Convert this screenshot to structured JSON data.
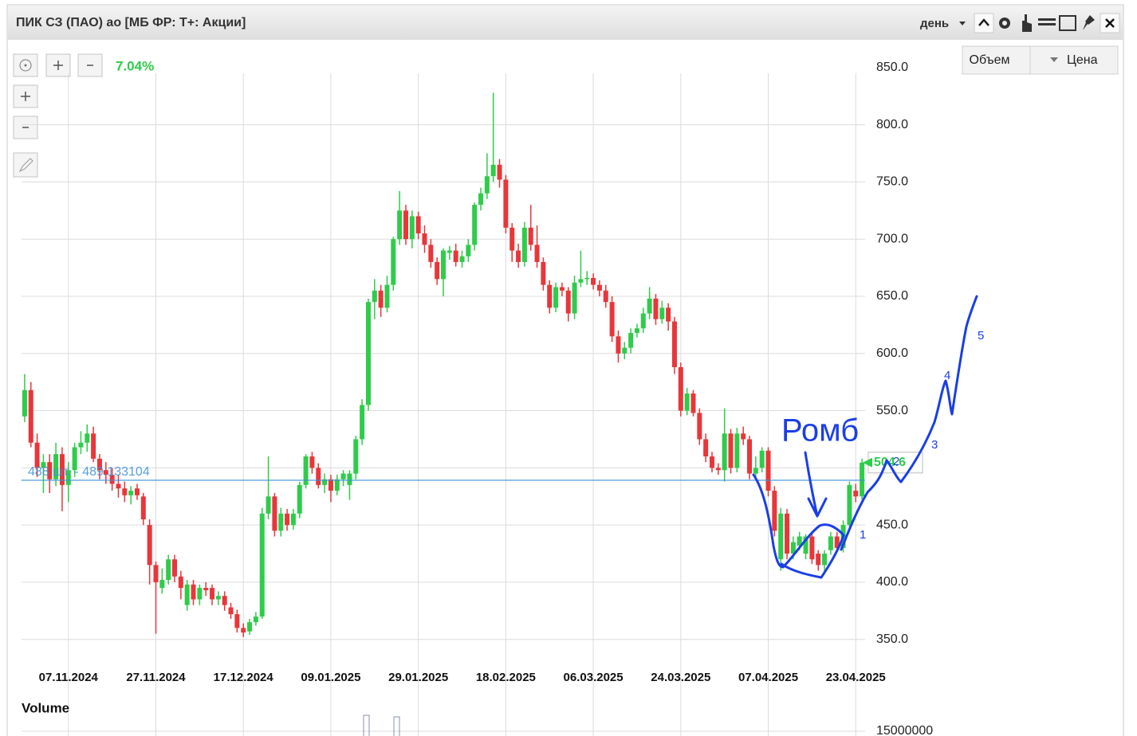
{
  "window": {
    "title": "ПИК СЗ (ПАО) ао [МБ ФР: Т+: Акции]",
    "period": "день",
    "buttons": [
      "Объем",
      "Цена"
    ]
  },
  "chart_data": {
    "type": "candlestick",
    "change": "7.04%",
    "up_color": "#2ecc4a",
    "down_color": "#e8363a",
    "categories": [
      null,
      null,
      null,
      null,
      null,
      null,
      null,
      "07.11.2024",
      null,
      null,
      null,
      null,
      null,
      null,
      null,
      null,
      null,
      null,
      null,
      null,
      null,
      "27.11.2024",
      null,
      null,
      null,
      null,
      null,
      null,
      null,
      null,
      null,
      null,
      null,
      null,
      null,
      "17.12.2024",
      null,
      null,
      null,
      null,
      null,
      null,
      null,
      null,
      null,
      null,
      null,
      null,
      null,
      "09.01.2025",
      null,
      null,
      null,
      null,
      null,
      null,
      null,
      null,
      null,
      null,
      null,
      null,
      null,
      "29.01.2025",
      null,
      null,
      null,
      null,
      null,
      null,
      null,
      null,
      null,
      null,
      null,
      null,
      null,
      "18.02.2025",
      null,
      null,
      null,
      null,
      null,
      null,
      null,
      null,
      null,
      null,
      null,
      null,
      null,
      "06.03.2025",
      null,
      null,
      null,
      null,
      null,
      null,
      null,
      null,
      null,
      null,
      null,
      null,
      null,
      "24.03.2025",
      null,
      null,
      null,
      null,
      null,
      null,
      null,
      null,
      null,
      null,
      null,
      null,
      null,
      "07.04.2025",
      null,
      null,
      null,
      null,
      null,
      null,
      null,
      null,
      null,
      null,
      null,
      null,
      null,
      "23.04.2025",
      null
    ],
    "ohlc": [
      [
        545,
        582,
        540,
        568
      ],
      [
        568,
        575,
        518,
        522
      ],
      [
        522,
        530,
        492,
        500
      ],
      [
        500,
        512,
        478,
        505
      ],
      [
        505,
        512,
        478,
        490
      ],
      [
        490,
        522,
        484,
        512
      ],
      [
        512,
        518,
        462,
        485
      ],
      [
        485,
        505,
        470,
        498
      ],
      [
        498,
        522,
        492,
        518
      ],
      [
        518,
        532,
        512,
        522
      ],
      [
        522,
        538,
        514,
        530
      ],
      [
        530,
        536,
        505,
        508
      ],
      [
        508,
        512,
        490,
        498
      ],
      [
        498,
        505,
        486,
        494
      ],
      [
        494,
        500,
        480,
        486
      ],
      [
        486,
        494,
        474,
        482
      ],
      [
        482,
        488,
        470,
        476
      ],
      [
        476,
        484,
        468,
        480
      ],
      [
        482,
        486,
        472,
        476
      ],
      [
        475,
        478,
        450,
        455
      ],
      [
        450,
        455,
        398,
        415
      ],
      [
        415,
        418,
        355,
        400
      ],
      [
        395,
        412,
        390,
        402
      ],
      [
        402,
        424,
        398,
        420
      ],
      [
        420,
        424,
        400,
        405
      ],
      [
        405,
        410,
        385,
        395
      ],
      [
        380,
        402,
        375,
        398
      ],
      [
        398,
        402,
        380,
        385
      ],
      [
        385,
        398,
        380,
        395
      ],
      [
        395,
        400,
        388,
        393
      ],
      [
        395,
        398,
        380,
        385
      ],
      [
        385,
        392,
        380,
        388
      ],
      [
        388,
        392,
        375,
        380
      ],
      [
        378,
        382,
        368,
        372
      ],
      [
        372,
        376,
        356,
        360
      ],
      [
        360,
        364,
        352,
        356
      ],
      [
        357,
        368,
        354,
        365
      ],
      [
        365,
        374,
        362,
        370
      ],
      [
        370,
        465,
        368,
        460
      ],
      [
        460,
        510,
        455,
        475
      ],
      [
        475,
        478,
        440,
        445
      ],
      [
        445,
        465,
        440,
        460
      ],
      [
        460,
        464,
        445,
        450
      ],
      [
        450,
        464,
        446,
        460
      ],
      [
        460,
        488,
        456,
        485
      ],
      [
        485,
        512,
        482,
        510
      ],
      [
        510,
        514,
        495,
        500
      ],
      [
        500,
        504,
        482,
        485
      ],
      [
        485,
        495,
        478,
        490
      ],
      [
        490,
        494,
        470,
        480
      ],
      [
        480,
        494,
        476,
        490
      ],
      [
        490,
        498,
        484,
        495
      ],
      [
        485,
        498,
        472,
        495
      ],
      [
        495,
        528,
        490,
        525
      ],
      [
        525,
        560,
        520,
        555
      ],
      [
        555,
        648,
        550,
        645
      ],
      [
        645,
        665,
        630,
        655
      ],
      [
        655,
        660,
        632,
        640
      ],
      [
        640,
        668,
        636,
        660
      ],
      [
        660,
        702,
        655,
        700
      ],
      [
        700,
        742,
        695,
        725
      ],
      [
        725,
        730,
        695,
        700
      ],
      [
        700,
        725,
        692,
        720
      ],
      [
        720,
        724,
        700,
        705
      ],
      [
        705,
        712,
        688,
        695
      ],
      [
        695,
        700,
        675,
        680
      ],
      [
        680,
        684,
        660,
        665
      ],
      [
        665,
        692,
        650,
        690
      ],
      [
        688,
        694,
        682,
        690
      ],
      [
        690,
        696,
        676,
        680
      ],
      [
        680,
        690,
        675,
        685
      ],
      [
        685,
        700,
        680,
        695
      ],
      [
        695,
        732,
        690,
        730
      ],
      [
        730,
        745,
        725,
        740
      ],
      [
        740,
        775,
        735,
        755
      ],
      [
        755,
        828,
        750,
        765
      ],
      [
        765,
        770,
        745,
        752
      ],
      [
        752,
        756,
        705,
        710
      ],
      [
        710,
        714,
        680,
        690
      ],
      [
        690,
        696,
        675,
        680
      ],
      [
        680,
        715,
        676,
        710
      ],
      [
        710,
        730,
        690,
        695
      ],
      [
        695,
        712,
        675,
        680
      ],
      [
        680,
        684,
        655,
        660
      ],
      [
        660,
        664,
        635,
        640
      ],
      [
        640,
        662,
        636,
        658
      ],
      [
        658,
        662,
        650,
        655
      ],
      [
        655,
        658,
        628,
        635
      ],
      [
        635,
        668,
        630,
        662
      ],
      [
        662,
        690,
        658,
        665
      ],
      [
        665,
        672,
        660,
        666
      ],
      [
        666,
        670,
        656,
        660
      ],
      [
        660,
        664,
        650,
        655
      ],
      [
        655,
        660,
        640,
        645
      ],
      [
        645,
        650,
        610,
        615
      ],
      [
        615,
        620,
        592,
        600
      ],
      [
        600,
        610,
        595,
        605
      ],
      [
        605,
        622,
        600,
        618
      ],
      [
        618,
        626,
        614,
        622
      ],
      [
        622,
        640,
        618,
        635
      ],
      [
        635,
        658,
        630,
        648
      ],
      [
        648,
        652,
        625,
        630
      ],
      [
        630,
        646,
        626,
        640
      ],
      [
        640,
        644,
        620,
        628
      ],
      [
        628,
        632,
        582,
        588
      ],
      [
        588,
        592,
        545,
        550
      ],
      [
        550,
        570,
        546,
        565
      ],
      [
        565,
        568,
        545,
        548
      ],
      [
        548,
        552,
        520,
        525
      ],
      [
        525,
        530,
        505,
        510
      ],
      [
        510,
        514,
        496,
        500
      ],
      [
        500,
        504,
        494,
        498
      ],
      [
        498,
        552,
        488,
        530
      ],
      [
        530,
        534,
        495,
        500
      ],
      [
        500,
        535,
        496,
        530
      ],
      [
        530,
        536,
        520,
        525
      ],
      [
        525,
        528,
        490,
        495
      ],
      [
        495,
        510,
        490,
        500
      ],
      [
        500,
        518,
        496,
        515
      ],
      [
        515,
        518,
        475,
        480
      ],
      [
        480,
        484,
        440,
        445
      ],
      [
        420,
        465,
        410,
        460
      ],
      [
        460,
        464,
        420,
        425
      ],
      [
        425,
        440,
        420,
        435
      ],
      [
        432,
        444,
        428,
        440
      ],
      [
        425,
        442,
        420,
        440
      ],
      [
        440,
        444,
        416,
        420
      ],
      [
        425,
        428,
        410,
        415
      ],
      [
        415,
        428,
        408,
        425
      ],
      [
        428,
        444,
        424,
        440
      ],
      [
        440,
        444,
        426,
        430
      ],
      [
        430,
        454,
        426,
        450
      ],
      [
        450,
        488,
        446,
        485
      ],
      [
        480,
        486,
        470,
        475
      ],
      [
        475,
        508,
        472,
        504.6
      ]
    ],
    "ylim": [
      331,
      845
    ],
    "yticks": [
      {
        "value": 350,
        "label": "350.0"
      },
      {
        "value": 400,
        "label": "400.0"
      },
      {
        "value": 450,
        "label": "450.0"
      },
      {
        "value": 500,
        "label": "500.0"
      },
      {
        "value": 550,
        "label": "550.0"
      },
      {
        "value": 600,
        "label": "600.0"
      },
      {
        "value": 650,
        "label": "650.0"
      },
      {
        "value": 700,
        "label": "700.0"
      },
      {
        "value": 750,
        "label": "750.0"
      },
      {
        "value": 800,
        "label": "800.0"
      },
      {
        "value": 850,
        "label": "850.0"
      }
    ],
    "grid": true,
    "price_line": {
      "value": 489.133104,
      "label": "488 шт. - 489.133104",
      "color": "#3a8fd9"
    },
    "last_price": 504.6,
    "annotations": [
      "Ромб",
      "1",
      "2",
      "3",
      "4",
      "5"
    ]
  },
  "volume": {
    "title": "Volume",
    "yticks": [
      15000000
    ]
  }
}
